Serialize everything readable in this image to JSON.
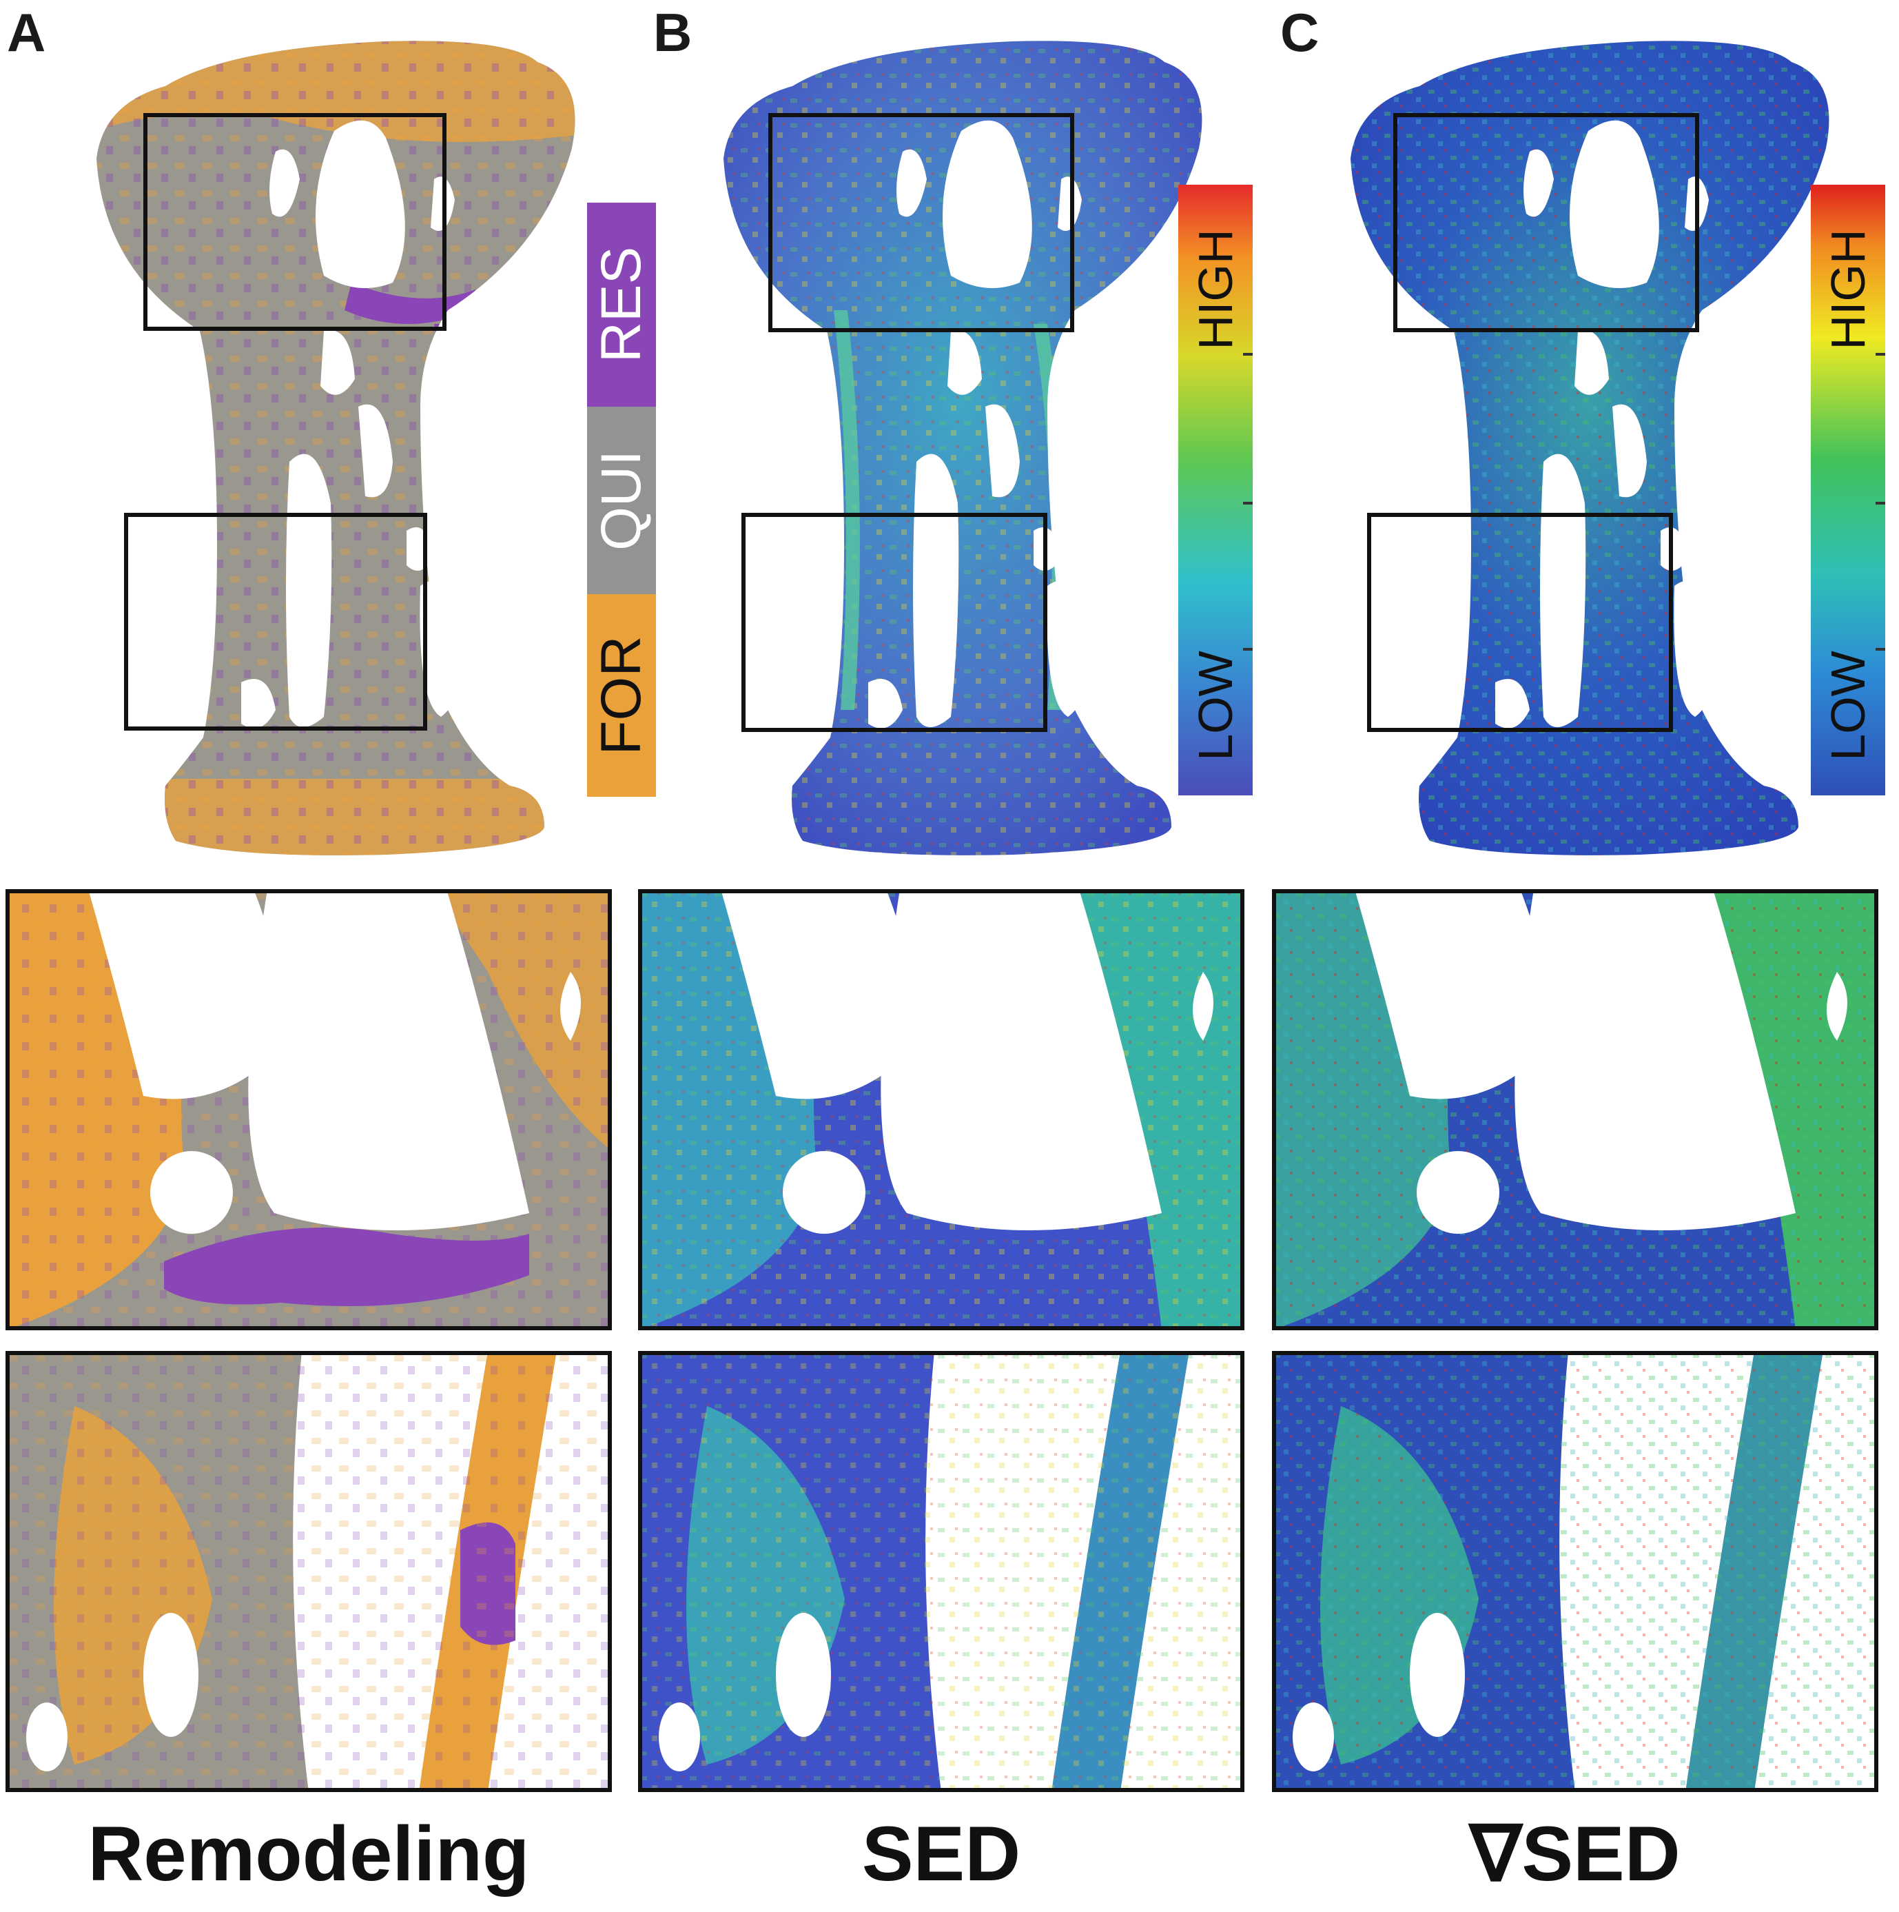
{
  "panels": [
    {
      "letter": "A"
    },
    {
      "letter": "B"
    },
    {
      "letter": "C"
    }
  ],
  "remodeling_legend": {
    "segments": [
      {
        "label": "RES",
        "color": "#8a46b6"
      },
      {
        "label": "QUI",
        "color": "#939393"
      },
      {
        "label": "FOR",
        "color": "#eba13a"
      }
    ]
  },
  "colorbars": [
    {
      "high_label": "HIGH",
      "low_label": "LOW"
    },
    {
      "high_label": "HIGH",
      "low_label": "LOW"
    }
  ],
  "captions": {
    "remodeling": "Remodeling",
    "sed": "SED",
    "grad_sed": "∇SED"
  },
  "colors": {
    "res": "#8a46b6",
    "qui": "#939393",
    "for": "#eba13a",
    "sed_base": "#3f52c8",
    "sed_mid": "#31b6b0",
    "sed_high": "#e3382b"
  }
}
